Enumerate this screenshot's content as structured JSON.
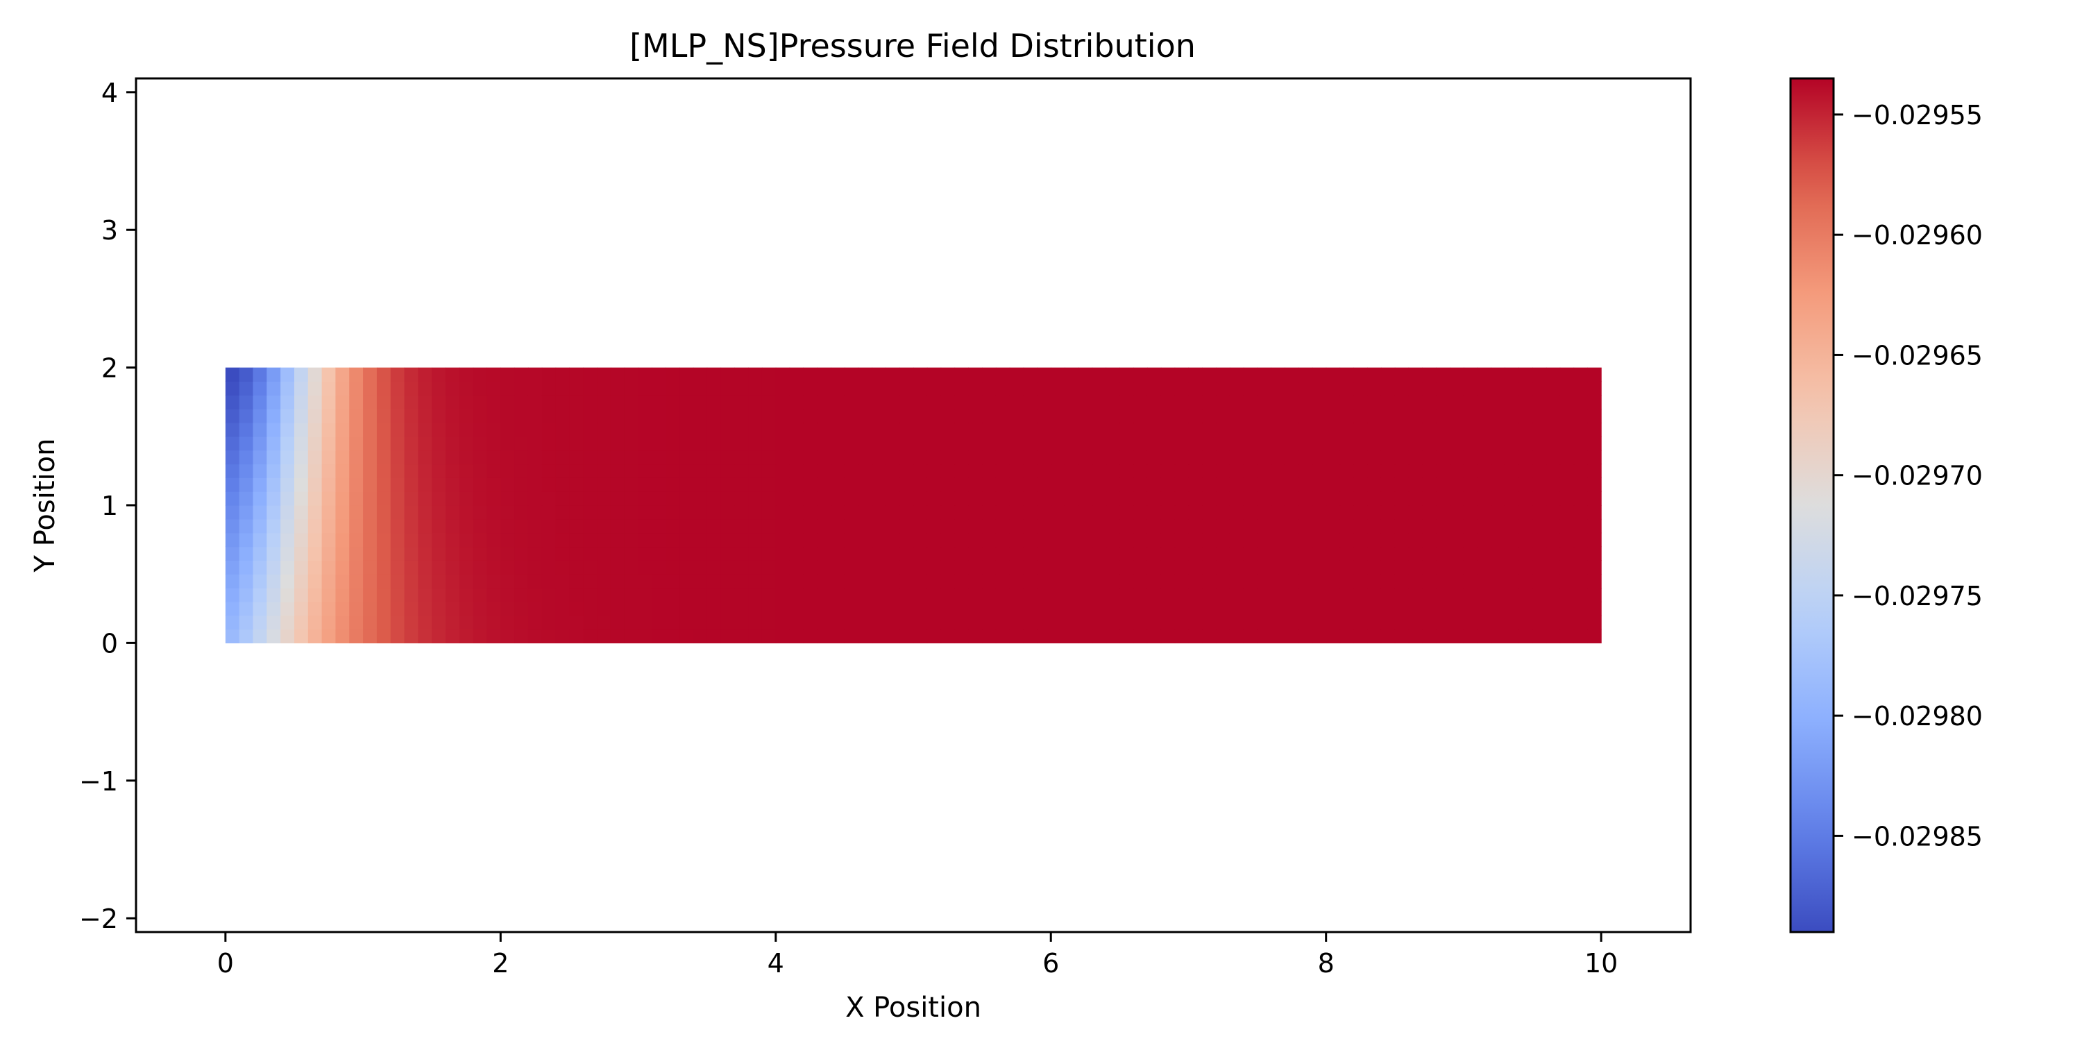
{
  "chart_data": {
    "type": "heatmap",
    "title": "[MLP_NS]Pressure Field Distribution",
    "xlabel": "X Position",
    "ylabel": "Y Position",
    "xlim": [
      -0.65,
      10.65
    ],
    "ylim": [
      -2.1,
      4.1
    ],
    "x_ticks": [
      0,
      2,
      4,
      6,
      8,
      10
    ],
    "x_tick_labels": [
      "0",
      "2",
      "4",
      "6",
      "8",
      "10"
    ],
    "y_ticks": [
      -2,
      -1,
      0,
      1,
      2,
      3,
      4
    ],
    "y_tick_labels": [
      "−2",
      "−1",
      "0",
      "1",
      "2",
      "3",
      "4"
    ],
    "grid": false,
    "colormap": "coolwarm",
    "domain": {
      "x_range": [
        0,
        10
      ],
      "y_range": [
        0,
        2
      ]
    },
    "grid_resolution": {
      "nx": 100,
      "ny": 20
    },
    "field": {
      "name": "pressure",
      "inlet_region_x": [
        0,
        1.2
      ],
      "max_value": -0.029535,
      "min_value": -0.02989,
      "description_model": "blue (low) near inlet top-left, transitions to red (high) by x≈1.2, saturated beyond x≈3.5"
    },
    "colorbar": {
      "vmin": -0.02989,
      "vmax": -0.029535,
      "ticks": [
        -0.02985,
        -0.0298,
        -0.02975,
        -0.0297,
        -0.02965,
        -0.0296,
        -0.02955
      ],
      "tick_labels": [
        "−0.02985",
        "−0.02980",
        "−0.02975",
        "−0.02970",
        "−0.02965",
        "−0.02960",
        "−0.02955"
      ]
    }
  }
}
